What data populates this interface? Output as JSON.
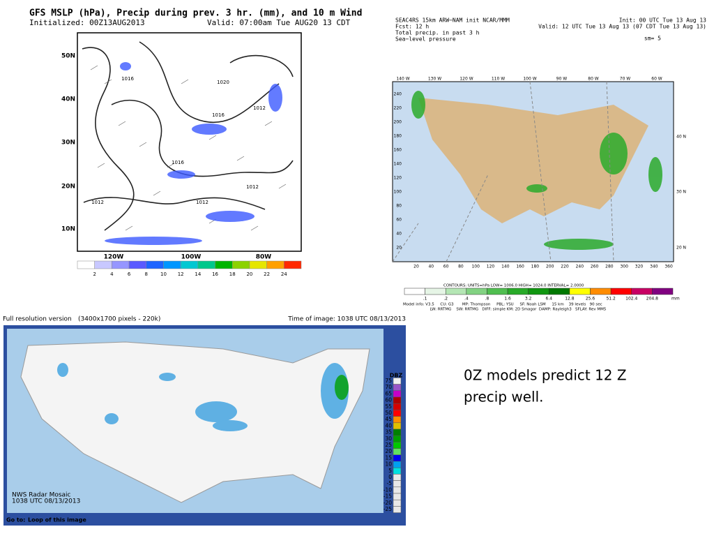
{
  "gfs": {
    "title": "GFS MSLP (hPa), Precip during prev. 3 hr. (mm), and 10 m Wind",
    "initialized": "Initialized: 00Z13AUG2013",
    "valid": "Valid: 07:00am Tue AUG20 13 CDT",
    "lat_labels": [
      "50N",
      "40N",
      "30N",
      "20N",
      "10N"
    ],
    "lon_labels": [
      "120W",
      "100W",
      "80W"
    ],
    "contour_labels": [
      "1016",
      "1020",
      "1016",
      "1012",
      "1016",
      "1012",
      "1012",
      "1012"
    ],
    "colorbar_labels": [
      "2",
      "4",
      "6",
      "8",
      "10",
      "12",
      "14",
      "16",
      "18",
      "20",
      "22",
      "24"
    ],
    "colorbar_colors": [
      "#ffffff",
      "#c8c8ff",
      "#9696ff",
      "#5a5aff",
      "#1e64ff",
      "#0096ff",
      "#00c8d2",
      "#00c88c",
      "#00b400",
      "#8cd200",
      "#e6e600",
      "#ffa000",
      "#ff2800"
    ]
  },
  "wrf": {
    "header_left": [
      "SEAC4RS 15km ARW−NAM init   NCAR/MMM",
      "Fcst:  12 h",
      "Total precip. in past 3 h",
      "Sea−level pressure"
    ],
    "init": "Init: 00 UTC Tue 13 Aug 13",
    "valid": "Valid: 12 UTC Tue 13 Aug 13 (07 CDT Tue 13 Aug 13)",
    "sm": "sm= 5",
    "top_labels": [
      "140 W",
      "130 W",
      "120 W",
      "110 W",
      "100 W",
      "90 W",
      "80 W",
      "70 W",
      "60 W"
    ],
    "left_labels": [
      "240",
      "220",
      "200",
      "180",
      "160",
      "140",
      "120",
      "100",
      "80",
      "60",
      "40",
      "20"
    ],
    "bottom_labels": [
      "20",
      "40",
      "60",
      "80",
      "100",
      "120",
      "140",
      "160",
      "180",
      "200",
      "220",
      "240",
      "260",
      "280",
      "300",
      "320",
      "340",
      "360"
    ],
    "right_labels": [
      "40 N",
      "30 N",
      "20 N"
    ],
    "contours": "CONTOURS:  UNITS=hPa  LOW=  1006.0    HIGH=  1024.0    INTERVAL=   2.0000",
    "colorbar_labels": [
      ".1",
      ".2",
      ".4",
      ".8",
      "1.6",
      "3.2",
      "6.4",
      "12.8",
      "25.6",
      "51.2",
      "102.4",
      "204.8"
    ],
    "colorbar_unit": "mm",
    "colorbar_colors": [
      "#ffffff",
      "#e6f5e6",
      "#b4e6b4",
      "#82d282",
      "#50be50",
      "#28aa28",
      "#109610",
      "#007800",
      "#ffff00",
      "#ff8c00",
      "#ff0000",
      "#c80064",
      "#800080"
    ],
    "model_info": [
      "Model info: V3.5     CU: G3       MP: Thompson     PBL: YSU     SF: Noah LSM     15 km    39 levels   90 sec",
      "                      LW: RRTMG    SW: RRTMG   DIFF: simple KM: 2D Smagor  DAMP: Rayleigh3   SFLAY: Rev MM5"
    ]
  },
  "radar": {
    "link": "Full resolution version",
    "size": "(3400x1700 pixels - 220k)",
    "time": "Time of image: 1038 UTC 08/13/2013",
    "stamp": [
      "NWS Radar Mosaic",
      "1038 UTC 08/13/2013"
    ],
    "goto": "Go to:",
    "loop": "Loop of this image",
    "dbz": "DBZ",
    "scale_labels": [
      "75",
      "70",
      "65",
      "60",
      "55",
      "50",
      "45",
      "40",
      "35",
      "30",
      "25",
      "20",
      "15",
      "10",
      "5",
      "0",
      "-5",
      "-10",
      "-15",
      "-20",
      "-25"
    ],
    "scale_colors": [
      "#f0f0f0",
      "#9955c9",
      "#c800c8",
      "#b00000",
      "#d40000",
      "#ff0000",
      "#ff9000",
      "#e0c000",
      "#008000",
      "#00a000",
      "#00c800",
      "#60e060",
      "#0000f0",
      "#00a0f0",
      "#00e0e0",
      "#e8e8e8",
      "#e8e8e8",
      "#e8e8e8",
      "#e8e8e8",
      "#e8e8e8",
      "#e8e8e8"
    ]
  },
  "caption": [
    "0Z models predict 12 Z",
    " precip well."
  ]
}
